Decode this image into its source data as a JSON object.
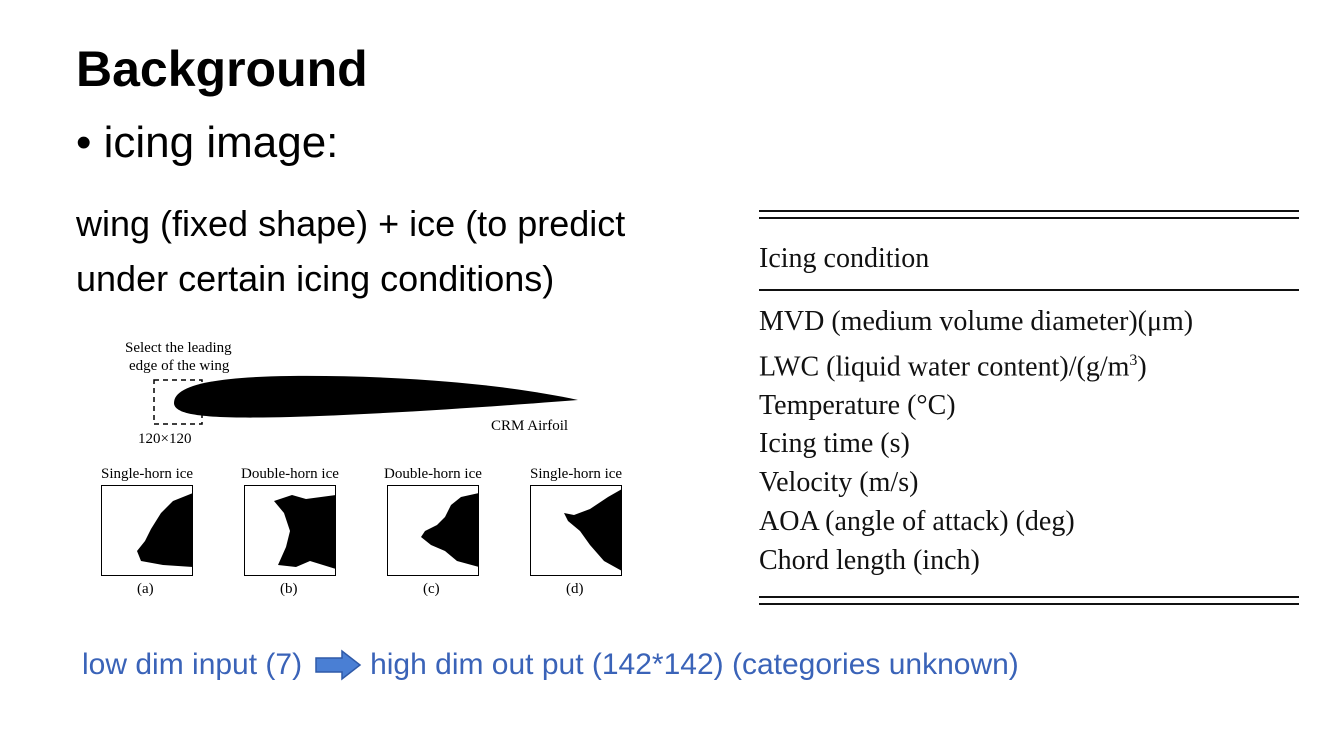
{
  "slide": {
    "title": "Background",
    "bullet": "• icing image:",
    "description": "wing (fixed shape) + ice (to predict under certain icing conditions)",
    "bottom_left": "low dim input (7)",
    "bottom_right": "high dim out put (142*142) (categories unknown)"
  },
  "figure": {
    "select_label_line1": "Select the leading",
    "select_label_line2": "edge of the wing",
    "crop_size": "120×120",
    "airfoil_label": "CRM Airfoil",
    "panels": [
      {
        "title": "Single-horn ice",
        "letter": "(a)"
      },
      {
        "title": "Double-horn ice",
        "letter": "(b)"
      },
      {
        "title": "Double-horn ice",
        "letter": "(c)"
      },
      {
        "title": "Single-horn ice",
        "letter": "(d)"
      }
    ]
  },
  "table": {
    "header": "Icing condition",
    "rows": [
      "MVD (medium volume diameter)(μm)",
      "LWC (liquid water content)/(g/m",
      "Temperature (°C)",
      "Icing time (s)",
      "Velocity (m/s)",
      "AOA (angle of attack) (deg)",
      "Chord length (inch)"
    ],
    "lwc_superscript": "3",
    "lwc_suffix": ")"
  },
  "colors": {
    "accent_text": "#3a63b8",
    "arrow_fill": "#4a7fd4"
  }
}
